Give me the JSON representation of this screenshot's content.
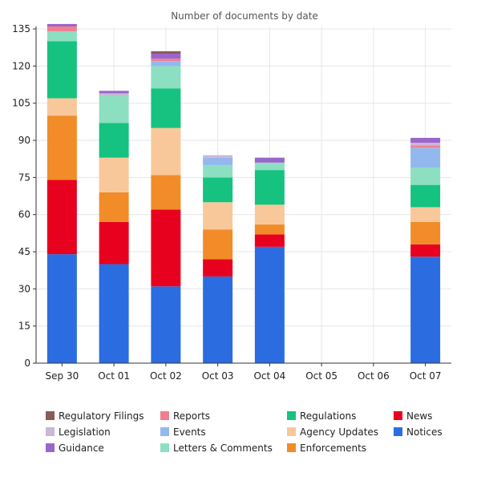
{
  "chart_data": {
    "type": "bar",
    "stacked": true,
    "title": "Number of documents by date",
    "xlabel": "",
    "ylabel": "",
    "ylim": [
      0,
      136
    ],
    "yticks": [
      0,
      15,
      30,
      45,
      60,
      75,
      90,
      105,
      120,
      135
    ],
    "grid": true,
    "legend_position": "bottom",
    "categories": [
      "Sep 30",
      "Oct 01",
      "Oct 02",
      "Oct 03",
      "Oct 04",
      "Oct 05",
      "Oct 06",
      "Oct 07"
    ],
    "series": [
      {
        "name": "Notices",
        "color": "#2b6de0",
        "values": [
          44,
          40,
          31,
          35,
          47,
          0,
          0,
          43
        ]
      },
      {
        "name": "News",
        "color": "#e8001f",
        "values": [
          30,
          17,
          31,
          7,
          5,
          0,
          0,
          5
        ]
      },
      {
        "name": "Enforcements",
        "color": "#f28c28",
        "values": [
          26,
          12,
          14,
          12,
          4,
          0,
          0,
          9
        ]
      },
      {
        "name": "Agency Updates",
        "color": "#f8c89a",
        "values": [
          7,
          14,
          19,
          11,
          8,
          0,
          0,
          6
        ]
      },
      {
        "name": "Regulations",
        "color": "#16c280",
        "values": [
          23,
          14,
          16,
          10,
          14,
          0,
          0,
          9
        ]
      },
      {
        "name": "Letters & Comments",
        "color": "#8ddfc2",
        "values": [
          4,
          11,
          9,
          5,
          3,
          0,
          0,
          7
        ]
      },
      {
        "name": "Events",
        "color": "#93b8ee",
        "values": [
          0,
          0,
          2,
          3,
          0,
          0,
          0,
          8
        ]
      },
      {
        "name": "Reports",
        "color": "#f08090",
        "values": [
          2,
          0,
          1,
          0,
          0,
          0,
          0,
          1
        ]
      },
      {
        "name": "Legislation",
        "color": "#c9b8d6",
        "values": [
          0,
          1,
          0,
          1,
          0,
          0,
          0,
          1
        ]
      },
      {
        "name": "Guidance",
        "color": "#9966cc",
        "values": [
          1,
          1,
          2,
          0,
          2,
          0,
          0,
          2
        ]
      },
      {
        "name": "Regulatory Filings",
        "color": "#8b5a5a",
        "values": [
          0,
          0,
          1,
          0,
          0,
          0,
          0,
          0
        ]
      }
    ],
    "legend_order": [
      [
        "Regulatory Filings",
        "Reports",
        "Regulations",
        "News"
      ],
      [
        "Legislation",
        "Events",
        "Agency Updates",
        "Notices"
      ],
      [
        "Guidance",
        "Letters & Comments",
        "Enforcements"
      ]
    ]
  }
}
